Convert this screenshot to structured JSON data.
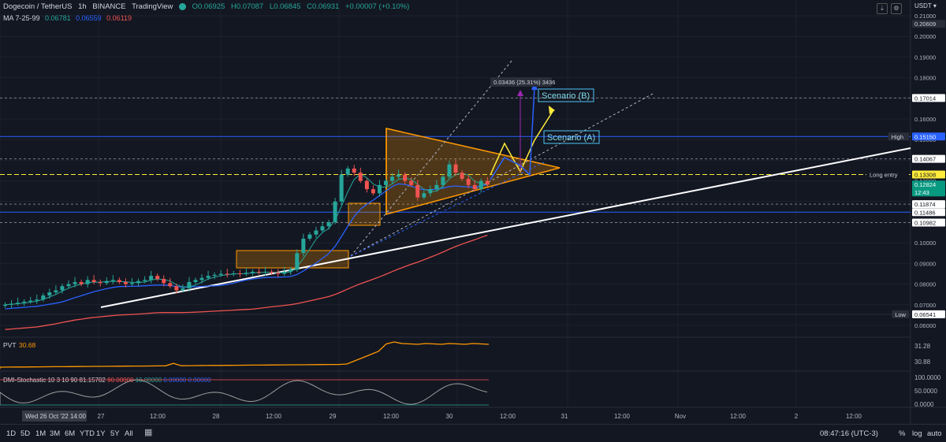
{
  "header": {
    "symbol": "Dogecoin / TetherUS",
    "interval": "1h",
    "exchange": "BINANCE",
    "platform": "TradingView",
    "open": "O0.06925",
    "high": "H0.07087",
    "low": "L0.06845",
    "close": "C0.06931",
    "change": "+0.00007 (+0.10%)"
  },
  "ma": {
    "label": "MA 7-25-99",
    "v1": "0.06781",
    "v2": "0.06559",
    "v3": "0.06119",
    "c1": "#26a69a",
    "c2": "#2962ff",
    "c3": "#ef5350"
  },
  "currency": "USDT",
  "price_axis": {
    "ticks": [
      "0.21000",
      "0.20000",
      "0.19000",
      "0.18000",
      "0.17000",
      "0.16000",
      "0.15000",
      "0.14000",
      "0.13000",
      "0.12000",
      "0.11000",
      "0.10000",
      "0.09000",
      "0.08000",
      "0.07000",
      "0.06000"
    ],
    "badges": [
      {
        "value": "0.20609",
        "kind": "dark"
      },
      {
        "value": "0.17014",
        "kind": "light"
      },
      {
        "value": "0.15150",
        "kind": "blue",
        "tag": "High"
      },
      {
        "value": "0.14067",
        "kind": "light"
      },
      {
        "value": "0.13308",
        "kind": "yellow",
        "tag": "Long entry"
      },
      {
        "value": "0.12824",
        "kind": "green",
        "sub": "12:43"
      },
      {
        "value": "0.11874",
        "kind": "light"
      },
      {
        "value": "0.11486",
        "kind": "light"
      },
      {
        "value": "0.10982",
        "kind": "light"
      },
      {
        "value": "0.06541",
        "kind": "light",
        "tag": "Low"
      }
    ]
  },
  "annotations": {
    "scenario_a": "Scenario (A)",
    "scenario_b": "Scenario (B)",
    "measure": "0.03436 (25.31%) 3436"
  },
  "pvt": {
    "label": "PVT",
    "value": "30.68",
    "ticks": [
      "31.28",
      "30.88"
    ]
  },
  "dmi": {
    "label": "DMI-Stochastic",
    "params": "10 3 10 90",
    "v1": "81.15702",
    "v2": "90.00000",
    "v3": "10.00000",
    "v4": "0.00000",
    "v5": "0.00000",
    "ticks": [
      "100.0000",
      "50.0000",
      "0.0000"
    ]
  },
  "time_axis": {
    "ticks": [
      "27",
      "12:00",
      "28",
      "12:00",
      "29",
      "12:00",
      "30",
      "12:00",
      "31",
      "12:00",
      "Nov",
      "12:00",
      "2",
      "12:00"
    ],
    "cursor": "Wed 26 Oct '22  14:00"
  },
  "bottom_bar": {
    "timeframes": [
      "1D",
      "5D",
      "1M",
      "3M",
      "6M",
      "YTD",
      "1Y",
      "5Y",
      "All"
    ],
    "clock": "08:47:16 (UTC-3)",
    "percent": "%",
    "log": "log",
    "auto": "auto"
  },
  "chart_data": {
    "type": "candlestick",
    "y_range": [
      0.0575,
      0.2105
    ],
    "candles_close_path": [
      0.07,
      0.0705,
      0.071,
      0.0715,
      0.072,
      0.0725,
      0.0745,
      0.076,
      0.077,
      0.079,
      0.08,
      0.081,
      0.08,
      0.082,
      0.081,
      0.0805,
      0.0815,
      0.082,
      0.081,
      0.08,
      0.0805,
      0.0815,
      0.082,
      0.084,
      0.0825,
      0.0805,
      0.079,
      0.077,
      0.078,
      0.081,
      0.082,
      0.083,
      0.084,
      0.0845,
      0.085,
      0.0848,
      0.0852,
      0.085,
      0.0855,
      0.086,
      0.0856,
      0.086,
      0.0855,
      0.085,
      0.086,
      0.087,
      0.095,
      0.102,
      0.104,
      0.106,
      0.108,
      0.11,
      0.12,
      0.133,
      0.136,
      0.134,
      0.13,
      0.126,
      0.124,
      0.128,
      0.13,
      0.132,
      0.133,
      0.13,
      0.128,
      0.122,
      0.124,
      0.126,
      0.128,
      0.132,
      0.138,
      0.134,
      0.131,
      0.128,
      0.126,
      0.13,
      0.1282
    ],
    "ma_lines": [
      {
        "name": "MA 7",
        "color": "#26a69a"
      },
      {
        "name": "MA 25",
        "color": "#2962ff"
      },
      {
        "name": "MA 99",
        "color": "#ef5350"
      }
    ],
    "levels": [
      0.17014,
      0.1515,
      0.14067,
      0.13308,
      0.11874,
      0.11486,
      0.10982,
      0.06541
    ]
  }
}
